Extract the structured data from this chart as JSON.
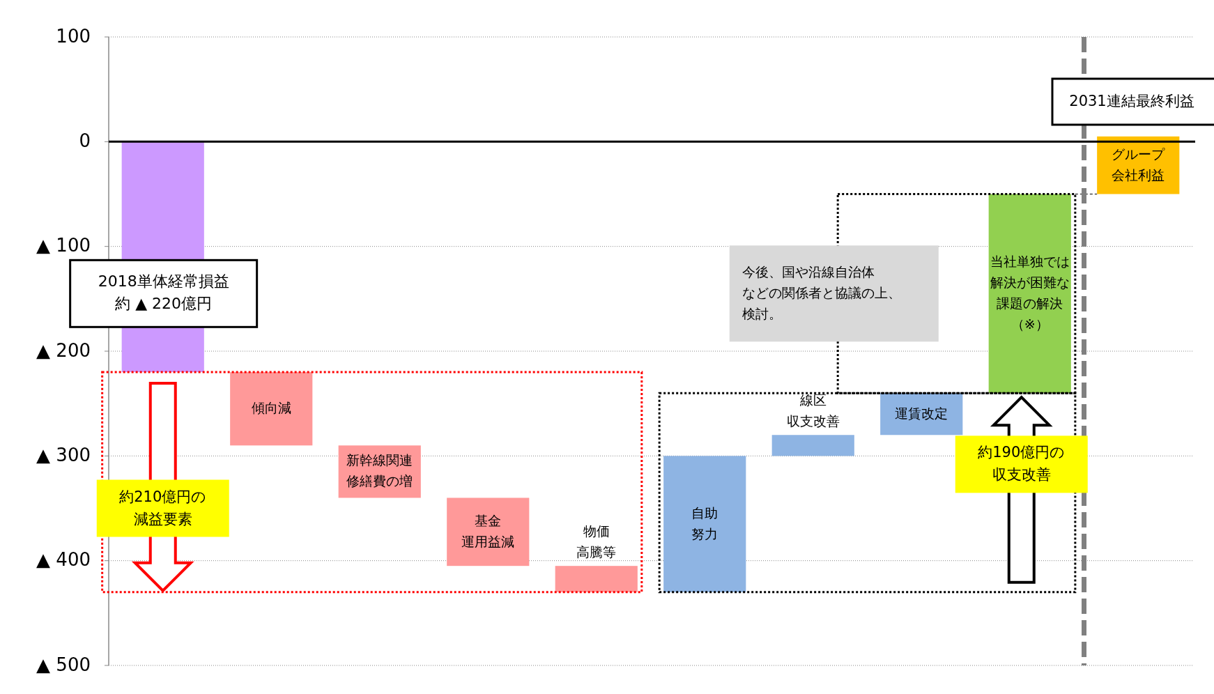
{
  "chart_data": {
    "type": "bar",
    "categories": [
      "2018単体経常損益約 ▲ 220億円",
      "傾向減",
      "新幹線関連修繕費の増",
      "基金運用益減",
      "物価高騰等",
      "自助努力",
      "線区収支改善",
      "運賃改定",
      "当社単独では解決が困難な課題の解決（※）",
      "グループ会社利益"
    ],
    "base": [
      0,
      -220,
      -290,
      -340,
      -405,
      -430,
      -300,
      -280,
      -240,
      -50
    ],
    "values": [
      -220,
      -70,
      -50,
      -65,
      -25,
      130,
      20,
      40,
      190,
      55
    ],
    "colors": [
      "#cc99ff",
      "#ff9999",
      "#ff9999",
      "#ff9999",
      "#ff9999",
      "#8eb4e3",
      "#8eb4e3",
      "#8eb4e3",
      "#92d050",
      "#ffc000"
    ],
    "ylim": [
      -500,
      100
    ],
    "yticks": [
      100,
      0,
      {
        "value": -100,
        "label": "▲ 100"
      },
      {
        "value": -200,
        "label": "▲ 200"
      },
      {
        "value": -300,
        "label": "▲ 300"
      },
      {
        "value": -400,
        "label": "▲ 400"
      },
      {
        "value": -500,
        "label": "▲ 500"
      }
    ],
    "grid": "y",
    "ref_lines": [
      {
        "axis": "x",
        "value": "グループ会社利益",
        "label": "2031連結最終利益",
        "line_style": "dashed",
        "color": "#808080"
      }
    ],
    "annotations": [
      "約210億円の減益要素",
      "約190億円の収支改善",
      "今後、国や沿線自治体などの関係者と協議の上、検討。"
    ]
  }
}
